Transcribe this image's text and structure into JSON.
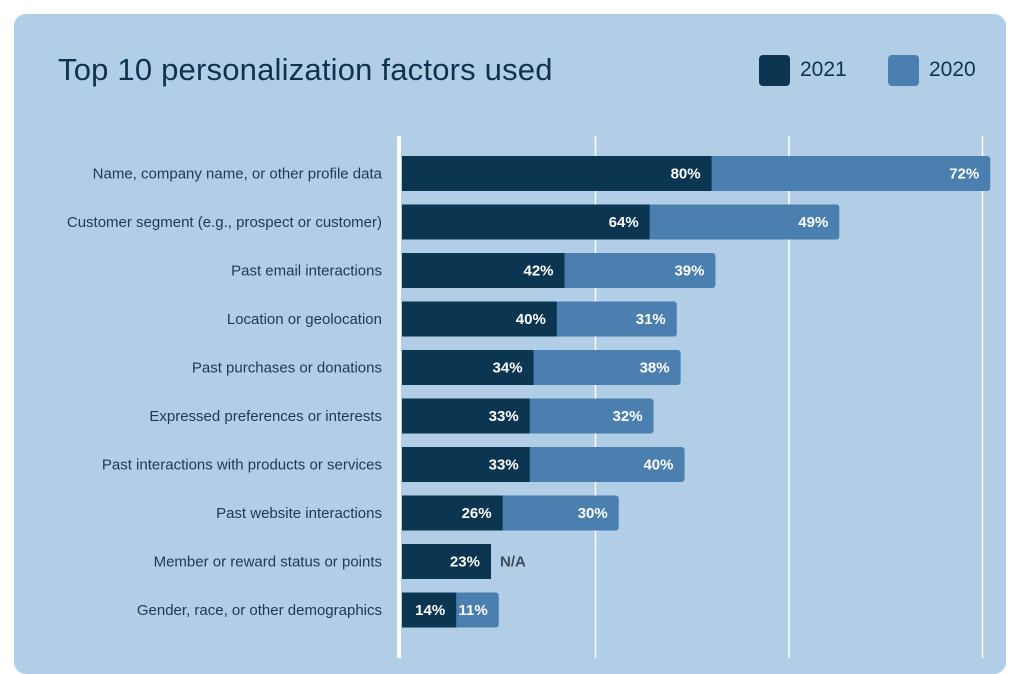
{
  "chart_data": {
    "type": "bar",
    "orientation": "horizontal",
    "stacked": true,
    "title": "Top 10 personalization factors used",
    "xlabel": "",
    "ylabel": "",
    "xlim": [
      0,
      152
    ],
    "grid": true,
    "legend_placement": "top-right",
    "categories": [
      "Name, company name, or other profile data",
      "Customer segment (e.g., prospect or customer)",
      "Past email interactions",
      "Location or geolocation",
      "Past purchases or donations",
      "Expressed preferences or interests",
      "Past interactions with products or services",
      "Past website interactions",
      "Member or reward status or points",
      "Gender, race, or other demographics"
    ],
    "series": [
      {
        "name": "2021",
        "color": "#0b3550",
        "values": [
          80,
          64,
          42,
          40,
          34,
          33,
          33,
          26,
          23,
          14
        ],
        "labels": [
          "80%",
          "64%",
          "42%",
          "40%",
          "34%",
          "33%",
          "33%",
          "26%",
          "23%",
          "14%"
        ]
      },
      {
        "name": "2020",
        "color": "#4a7fb0",
        "values": [
          72,
          49,
          39,
          31,
          38,
          32,
          40,
          30,
          null,
          11
        ],
        "labels": [
          "72%",
          "49%",
          "39%",
          "31%",
          "38%",
          "32%",
          "40%",
          "30%",
          "N/A",
          "11%"
        ]
      }
    ]
  },
  "colors": {
    "background": "#b2cde6",
    "title": "#0d3350",
    "gridline": "#ffffff"
  }
}
